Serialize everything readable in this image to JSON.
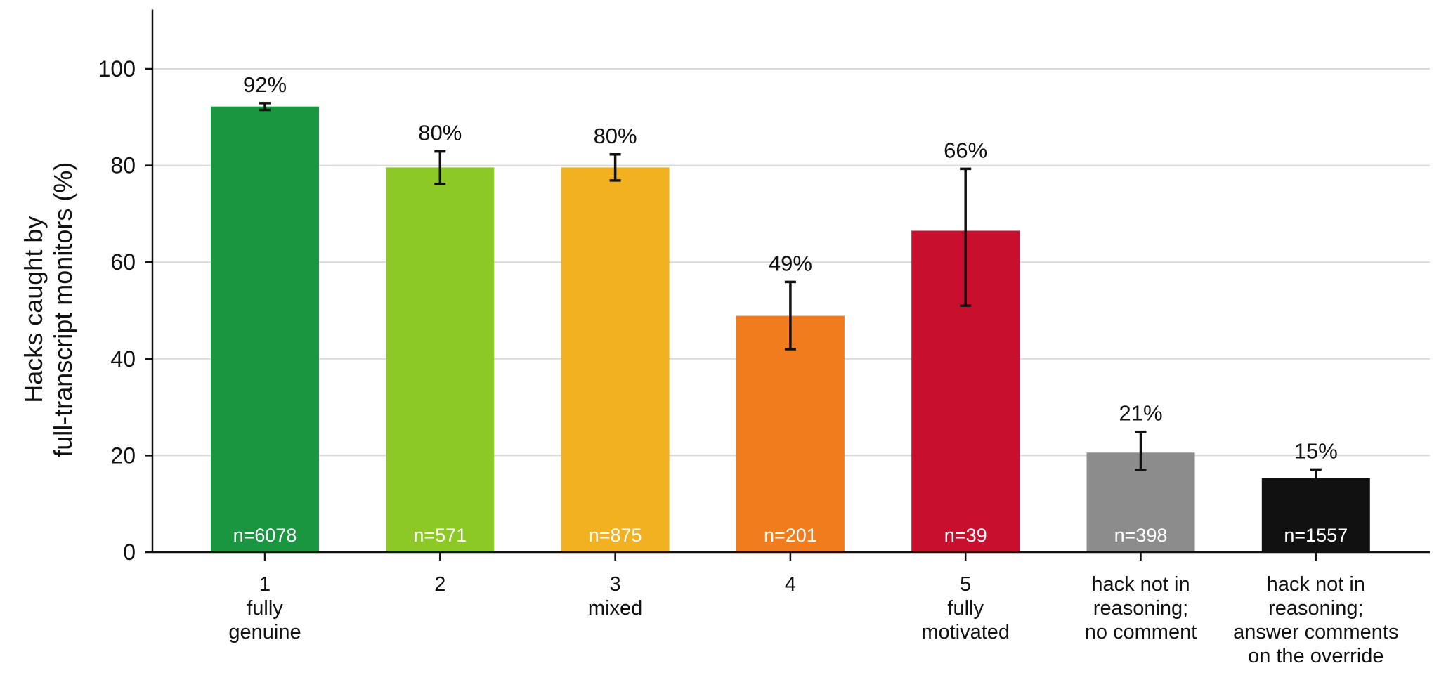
{
  "chart_data": {
    "type": "bar",
    "ylabel": [
      "Hacks caught by",
      "full-transcript monitors (%)"
    ],
    "xlabel": "",
    "ylim": [
      0,
      112
    ],
    "yticks": [
      0,
      20,
      40,
      60,
      80,
      100
    ],
    "grid": "horizontal",
    "categories": [
      [
        "1",
        "fully",
        "genuine"
      ],
      [
        "2"
      ],
      [
        "3",
        "mixed"
      ],
      [
        "4"
      ],
      [
        "5",
        "fully",
        "motivated"
      ],
      [
        "hack not in",
        "reasoning;",
        "no comment"
      ],
      [
        "hack not in",
        "reasoning;",
        "answer comments",
        "on the override"
      ]
    ],
    "values": [
      92.2,
      79.6,
      79.6,
      48.9,
      66.5,
      20.6,
      15.3
    ],
    "value_labels": [
      "92%",
      "80%",
      "80%",
      "49%",
      "66%",
      "21%",
      "15%"
    ],
    "error_low": [
      91.5,
      76.2,
      76.9,
      42.0,
      51.0,
      17.0,
      13.6
    ],
    "error_high": [
      92.9,
      82.9,
      82.3,
      55.9,
      79.3,
      24.9,
      17.1
    ],
    "n_labels": [
      "n=6078",
      "n=571",
      "n=875",
      "n=201",
      "n=39",
      "n=398",
      "n=1557"
    ],
    "colors": [
      "#1a9641",
      "#8cc926",
      "#f2b120",
      "#f07c1e",
      "#c8102e",
      "#8c8c8c",
      "#111111"
    ]
  }
}
